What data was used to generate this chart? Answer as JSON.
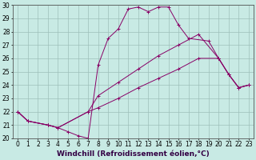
{
  "xlabel": "Windchill (Refroidissement éolien,°C)",
  "xlim": [
    -0.5,
    23.5
  ],
  "ylim": [
    20,
    30
  ],
  "xticks": [
    0,
    1,
    2,
    3,
    4,
    5,
    6,
    7,
    8,
    9,
    10,
    11,
    12,
    13,
    14,
    15,
    16,
    17,
    18,
    19,
    20,
    21,
    22,
    23
  ],
  "yticks": [
    20,
    21,
    22,
    23,
    24,
    25,
    26,
    27,
    28,
    29,
    30
  ],
  "bg_color": "#c8eae4",
  "line_color": "#880066",
  "grid_color": "#9dbfba",
  "lines": [
    {
      "x": [
        0,
        1,
        3,
        4,
        5,
        6,
        7,
        8,
        9,
        10,
        11,
        12,
        13,
        14,
        15,
        16,
        17,
        19,
        20,
        21,
        22,
        23
      ],
      "y": [
        22.0,
        21.3,
        21.0,
        20.8,
        20.5,
        20.2,
        20.0,
        25.5,
        27.5,
        28.2,
        29.7,
        29.85,
        29.5,
        29.85,
        29.85,
        28.5,
        27.5,
        27.3,
        26.0,
        24.8,
        23.8,
        24.0
      ]
    },
    {
      "x": [
        0,
        1,
        3,
        4,
        7,
        8,
        10,
        12,
        14,
        16,
        18,
        20,
        21,
        22,
        23
      ],
      "y": [
        22.0,
        21.3,
        21.0,
        20.8,
        22.0,
        23.2,
        24.2,
        25.2,
        26.2,
        27.0,
        27.8,
        26.0,
        24.8,
        23.8,
        24.0
      ]
    },
    {
      "x": [
        0,
        1,
        3,
        4,
        7,
        8,
        10,
        12,
        14,
        16,
        18,
        20,
        21,
        22,
        23
      ],
      "y": [
        22.0,
        21.3,
        21.0,
        20.8,
        22.0,
        22.3,
        23.0,
        23.8,
        24.5,
        25.2,
        26.0,
        26.0,
        24.8,
        23.8,
        24.0
      ]
    }
  ],
  "figsize": [
    3.2,
    2.0
  ],
  "dpi": 100,
  "tick_fontsize": 5.5,
  "xlabel_fontsize": 6.5,
  "marker": "+"
}
